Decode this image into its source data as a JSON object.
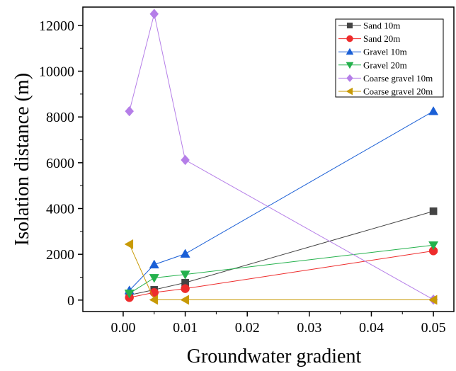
{
  "chart_data": {
    "type": "line",
    "title": "",
    "xlabel": "Groundwater gradient",
    "ylabel": "Isolation distance (m)",
    "xlim": [
      -0.0065,
      0.0533
    ],
    "ylim": [
      -500,
      12800
    ],
    "xticks": [
      0.0,
      0.01,
      0.02,
      0.03,
      0.04,
      0.05
    ],
    "xtick_labels": [
      "0.00",
      "0.01",
      "0.02",
      "0.03",
      "0.04",
      "0.05"
    ],
    "yticks": [
      0,
      2000,
      4000,
      6000,
      8000,
      10000,
      12000
    ],
    "ytick_labels": [
      "0",
      "2000",
      "4000",
      "6000",
      "8000",
      "10000",
      "12000"
    ],
    "grid": false,
    "legend_position": "top-right",
    "x": [
      0.001,
      0.005,
      0.01,
      0.05
    ],
    "series": [
      {
        "name": "Sand 10m",
        "values": [
          220,
          450,
          760,
          3880
        ],
        "color": "#444444",
        "marker": "square"
      },
      {
        "name": "Sand 20m",
        "values": [
          110,
          330,
          500,
          2150
        ],
        "color": "#ee2c2c",
        "marker": "circle"
      },
      {
        "name": "Gravel 10m",
        "values": [
          420,
          1550,
          2020,
          8250
        ],
        "color": "#1a5fd6",
        "marker": "triangle-up"
      },
      {
        "name": "Gravel 20m",
        "values": [
          290,
          970,
          1120,
          2400
        ],
        "color": "#24b14c",
        "marker": "triangle-down"
      },
      {
        "name": "Coarse gravel 10m",
        "values": [
          8250,
          12500,
          6120,
          20
        ],
        "color": "#b57ee8",
        "marker": "diamond"
      },
      {
        "name": "Coarse gravel 20m",
        "values": [
          2440,
          10,
          10,
          10
        ],
        "color": "#c89a06",
        "marker": "triangle-left"
      }
    ]
  }
}
